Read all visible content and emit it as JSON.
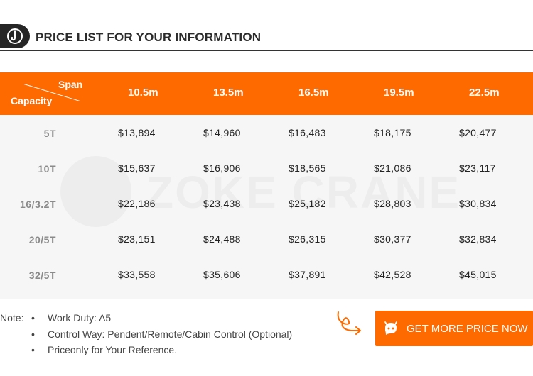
{
  "header": {
    "title": "PRICE LIST FOR YOUR INFORMATION",
    "logo_icon": "hook-icon"
  },
  "table": {
    "corner_span": "Span",
    "corner_capacity": "Capacity",
    "columns": [
      "10.5m",
      "13.5m",
      "16.5m",
      "19.5m",
      "22.5m"
    ],
    "rows": [
      {
        "capacity": "5T",
        "prices": [
          "$13,894",
          "$14,960",
          "$16,483",
          "$18,175",
          "$20,477"
        ]
      },
      {
        "capacity": "10T",
        "prices": [
          "$15,637",
          "$16,906",
          "$18,565",
          "$21,086",
          "$23,117"
        ]
      },
      {
        "capacity": "16/3.2T",
        "prices": [
          "$22,186",
          "$23,438",
          "$25,182",
          "$28,803",
          "$30,834"
        ]
      },
      {
        "capacity": "20/5T",
        "prices": [
          "$23,151",
          "$24,488",
          "$26,315",
          "$30,377",
          "$32,834"
        ]
      },
      {
        "capacity": "32/5T",
        "prices": [
          "$33,558",
          "$35,606",
          "$37,891",
          "$42,528",
          "$45,015"
        ]
      }
    ],
    "watermark": "ZOKE CRANE"
  },
  "notes": {
    "label": "Note:",
    "items": [
      "Work Duty: A5",
      "Control Way: Pendent/Remote/Cabin Control (Optional)",
      "Priceonly for Your Reference."
    ]
  },
  "cta": {
    "label": "GET MORE PRICE NOW",
    "icon": "chat-bot-icon",
    "arrow_icon": "curly-arrow-icon"
  },
  "colors": {
    "accent": "#ff6a00",
    "dark": "#262626",
    "row_bg": "#f6f6f6"
  }
}
